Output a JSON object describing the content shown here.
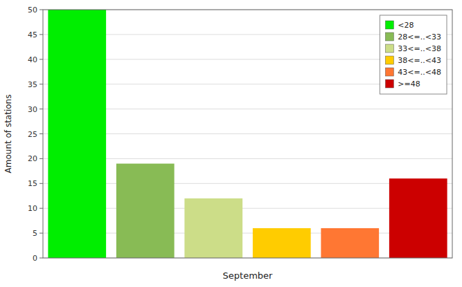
{
  "chart_data": {
    "type": "bar",
    "categories": [
      "<28",
      "28<=..<33",
      "33<=..<38",
      "38<=..<43",
      "43<=..<48",
      ">=48"
    ],
    "values": [
      50,
      19,
      12,
      6,
      6,
      16
    ],
    "colors": [
      "#00ee00",
      "#88bb55",
      "#ccdd88",
      "#ffcc00",
      "#ff7733",
      "#cc0000"
    ],
    "xlabel": "September",
    "ylabel": "Amount of stations",
    "ylim": [
      0,
      50
    ],
    "yticks": [
      0,
      5,
      10,
      15,
      20,
      25,
      30,
      35,
      40,
      45,
      50
    ],
    "grid": true,
    "legend": "upper right",
    "tick_labels": "y"
  }
}
